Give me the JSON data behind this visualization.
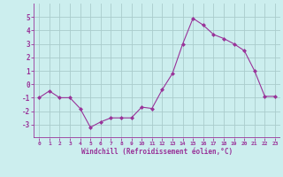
{
  "x": [
    0,
    1,
    2,
    3,
    4,
    5,
    6,
    7,
    8,
    9,
    10,
    11,
    12,
    13,
    14,
    15,
    16,
    17,
    18,
    19,
    20,
    21,
    22,
    23
  ],
  "y": [
    -1.0,
    -0.5,
    -1.0,
    -1.0,
    -1.8,
    -3.2,
    -2.8,
    -2.5,
    -2.5,
    -2.5,
    -1.7,
    -1.8,
    -0.4,
    0.8,
    3.0,
    4.9,
    4.4,
    3.7,
    3.4,
    3.0,
    2.5,
    1.0,
    -0.9,
    -0.9
  ],
  "line_color": "#993399",
  "marker": "D",
  "marker_size": 2,
  "bg_color": "#cceeee",
  "grid_color": "#aacccc",
  "xlabel": "Windchill (Refroidissement éolien,°C)",
  "xlabel_color": "#993399",
  "tick_color": "#993399",
  "ylim": [
    -4,
    6
  ],
  "xlim": [
    -0.5,
    23.5
  ],
  "yticks": [
    -3,
    -2,
    -1,
    0,
    1,
    2,
    3,
    4,
    5
  ],
  "xticks": [
    0,
    1,
    2,
    3,
    4,
    5,
    6,
    7,
    8,
    9,
    10,
    11,
    12,
    13,
    14,
    15,
    16,
    17,
    18,
    19,
    20,
    21,
    22,
    23
  ],
  "xtick_labels": [
    "0",
    "1",
    "2",
    "3",
    "4",
    "5",
    "6",
    "7",
    "8",
    "9",
    "10",
    "11",
    "12",
    "13",
    "14",
    "15",
    "16",
    "17",
    "18",
    "19",
    "20",
    "21",
    "22",
    "23"
  ]
}
